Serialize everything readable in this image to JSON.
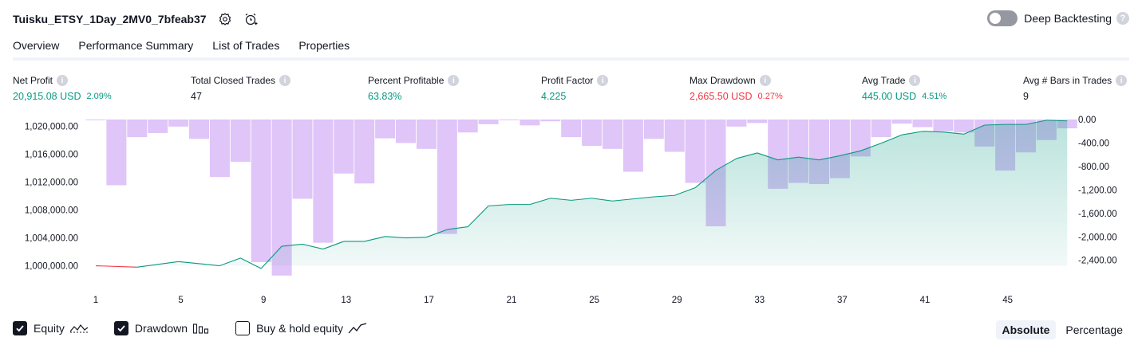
{
  "header": {
    "title": "Tuisku_ETSY_1Day_2MV0_7bfeab37",
    "settings_icon": "gear-icon",
    "alert_icon": "alarm-clock-plus-icon"
  },
  "deep_backtesting": {
    "label": "Deep Backtesting",
    "enabled": false,
    "help": "?"
  },
  "tabs": [
    {
      "label": "Overview",
      "active": true
    },
    {
      "label": "Performance Summary",
      "active": false
    },
    {
      "label": "List of Trades",
      "active": false
    },
    {
      "label": "Properties",
      "active": false
    }
  ],
  "metrics": {
    "info_glyph": "i",
    "net_profit": {
      "label": "Net Profit",
      "value": "20,915.08 USD",
      "pct": "2.09%"
    },
    "total_closed_trades": {
      "label": "Total Closed Trades",
      "value": "47"
    },
    "percent_profitable": {
      "label": "Percent Profitable",
      "value": "63.83%"
    },
    "profit_factor": {
      "label": "Profit Factor",
      "value": "4.225"
    },
    "max_drawdown": {
      "label": "Max Drawdown",
      "value": "2,665.50 USD",
      "pct": "0.27%"
    },
    "avg_trade": {
      "label": "Avg Trade",
      "value": "445.00 USD",
      "pct": "4.51%"
    },
    "avg_bars": {
      "label": "Avg # Bars in Trades",
      "value": "9"
    }
  },
  "chart_data": {
    "type": "area",
    "x_ticks": [
      1,
      5,
      9,
      13,
      17,
      21,
      25,
      29,
      33,
      37,
      41,
      45
    ],
    "left_axis": {
      "ticks": [
        "1,020,000.00",
        "1,016,000.00",
        "1,012,000.00",
        "1,008,000.00",
        "1,004,000.00",
        "1,000,000.00"
      ],
      "ylim": [
        998000,
        1021000
      ]
    },
    "right_axis": {
      "ticks": [
        "0.00",
        "-400.00",
        "-800.00",
        "-1,200.00",
        "-1,600.00",
        "-2,000.00",
        "-2,400.00"
      ],
      "ylim": [
        -2730,
        0
      ]
    },
    "series": [
      {
        "name": "Equity",
        "kind": "line-area",
        "color": "#089981",
        "negative_color": "#f23645",
        "x": [
          1,
          3,
          5,
          7,
          8,
          9,
          10,
          11,
          12,
          13,
          14,
          15,
          16,
          17,
          18,
          19,
          20,
          21,
          22,
          23,
          24,
          25,
          26,
          27,
          28,
          29,
          30,
          31,
          32,
          33,
          34,
          35,
          36,
          37,
          38,
          39,
          40,
          41,
          42,
          43,
          44,
          45,
          46,
          47,
          48
        ],
        "values": [
          1000000,
          999800,
          1000600,
          1000000,
          1001100,
          999600,
          1002800,
          1003100,
          1002400,
          1003500,
          1003500,
          1004200,
          1004000,
          1004100,
          1005200,
          1005600,
          1008600,
          1008800,
          1008800,
          1009700,
          1009400,
          1009700,
          1009300,
          1009600,
          1009900,
          1010100,
          1011200,
          1013700,
          1015400,
          1016200,
          1015200,
          1015600,
          1015200,
          1015800,
          1016500,
          1017600,
          1018800,
          1019300,
          1019200,
          1018900,
          1020200,
          1020300,
          1020300,
          1020900,
          1020800
        ]
      },
      {
        "name": "Drawdown",
        "kind": "bars",
        "color": "#d4b1f5",
        "x": [
          1,
          2,
          3,
          4,
          5,
          6,
          7,
          8,
          9,
          10,
          11,
          12,
          13,
          14,
          15,
          16,
          17,
          18,
          19,
          20,
          21,
          22,
          23,
          24,
          25,
          26,
          27,
          28,
          29,
          30,
          31,
          32,
          33,
          34,
          35,
          36,
          37,
          38,
          39,
          40,
          41,
          42,
          43,
          44,
          45,
          46,
          47,
          48
        ],
        "values": [
          0,
          -1120,
          -300,
          -230,
          -120,
          -330,
          -980,
          -720,
          -2430,
          -2660,
          -1350,
          -2100,
          -920,
          -1090,
          -320,
          -400,
          -500,
          -1950,
          -220,
          -80,
          0,
          -100,
          -30,
          -300,
          -450,
          -500,
          -890,
          -330,
          -550,
          -1080,
          -1820,
          -120,
          -60,
          -1180,
          -1080,
          -1100,
          -1000,
          -630,
          -300,
          -70,
          -130,
          -200,
          -220,
          -460,
          -870,
          -560,
          -350,
          -150
        ]
      }
    ]
  },
  "legend": {
    "items": [
      {
        "label": "Equity",
        "checked": true,
        "icon": "equity-line-icon"
      },
      {
        "label": "Drawdown",
        "checked": true,
        "icon": "drawdown-bars-icon"
      },
      {
        "label": "Buy & hold equity",
        "checked": false,
        "icon": "buy-hold-line-icon"
      }
    ]
  },
  "scale_switch": {
    "absolute": "Absolute",
    "percentage": "Percentage",
    "selected": "Absolute"
  }
}
